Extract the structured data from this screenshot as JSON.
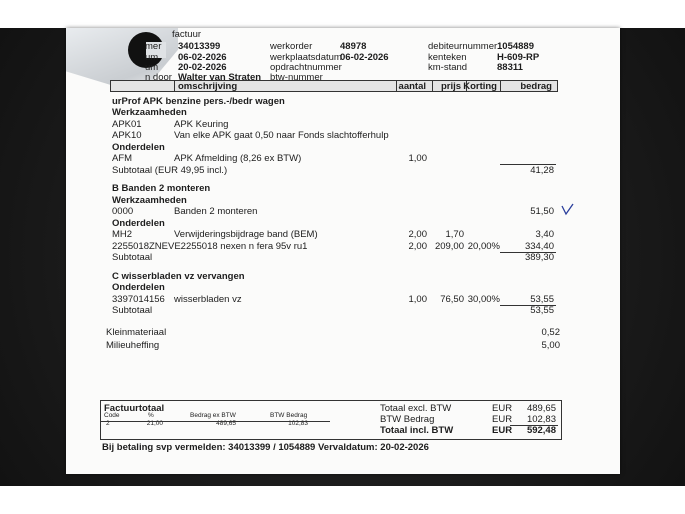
{
  "header": {
    "title": "factuur",
    "left": [
      {
        "label": "mer",
        "value": "34013399"
      },
      {
        "label": "um",
        "value": "06-02-2026"
      },
      {
        "label": "um",
        "value": "20-02-2026"
      },
      {
        "label": "n door",
        "value": "Walter van Straten"
      }
    ],
    "middle": [
      {
        "label": "werkorder",
        "value": "48978"
      },
      {
        "label": "werkplaatsdatum",
        "value": "06-02-2026"
      },
      {
        "label": "opdrachtnummer"
      },
      {
        "label": "btw-nummer"
      }
    ],
    "right": [
      {
        "label": "debiteurnummer",
        "value": "1054889"
      },
      {
        "label": "kenteken",
        "value": "H-609-RP"
      },
      {
        "label": "km-stand",
        "value": "88311"
      }
    ]
  },
  "table_header": {
    "description": "omschrijving",
    "quantity": "aantal",
    "price": "prijs",
    "discount": "Korting",
    "amount": "bedrag"
  },
  "sections": [
    {
      "title": "urProf APK benzine pers.-/bedr wagen",
      "groups": [
        {
          "label": "Werkzaamheden",
          "items": [
            {
              "code": "APK01",
              "description": "APK Keuring"
            },
            {
              "code": "APK10",
              "description": "Van elke APK gaat 0,50 naar Fonds slachtofferhulp"
            }
          ]
        },
        {
          "label": "Onderdelen",
          "items": [
            {
              "code": "AFM",
              "description": "APK Afmelding (8,26 ex BTW)",
              "quantity": "1,00"
            }
          ]
        }
      ],
      "subtotal": {
        "label": "Subtotaal (EUR 49,95 incl.)",
        "amount": "41,28"
      }
    },
    {
      "title": "B Banden 2 monteren",
      "groups": [
        {
          "label": "Werkzaamheden",
          "items": [
            {
              "code": "0000",
              "description": "Banden 2 monteren",
              "amount": "51,50"
            }
          ]
        },
        {
          "label": "Onderdelen",
          "items": [
            {
              "code": "MH2",
              "description": "Verwijderingsbijdrage band (BEM)",
              "quantity": "2,00",
              "price": "1,70",
              "amount": "3,40"
            },
            {
              "code": "2255018ZNEVE2255018 nexen n fera 95v ru1",
              "quantity": "2,00",
              "price": "209,00",
              "discount": "20,00%",
              "amount": "334,40"
            }
          ]
        }
      ],
      "subtotal": {
        "label": "Subtotaal",
        "amount": "389,30"
      }
    },
    {
      "title": "C wisserbladen vz vervangen",
      "groups": [
        {
          "label": "Onderdelen",
          "items": [
            {
              "code": "3397014156",
              "description": "wisserbladen vz",
              "quantity": "1,00",
              "price": "76,50",
              "discount": "30,00%",
              "amount": "53,55"
            }
          ]
        }
      ],
      "subtotal": {
        "label": "Subtotaal",
        "amount": "53,55"
      }
    }
  ],
  "extra_charges": [
    {
      "label": "Kleinmateriaal",
      "amount": "0,52"
    },
    {
      "label": "Milieuheffing",
      "amount": "5,00"
    }
  ],
  "totals": {
    "title": "Factuurtotaal",
    "vat_table": {
      "columns": [
        "Code",
        "%",
        "Bedrag ex BTW",
        "BTW Bedrag"
      ],
      "row": [
        "2",
        "21,00",
        "489,65",
        "102,83"
      ]
    },
    "lines": [
      {
        "label": "Totaal excl. BTW",
        "currency": "EUR",
        "amount": "489,65"
      },
      {
        "label": "BTW Bedrag",
        "currency": "EUR",
        "amount": "102,83"
      },
      {
        "label": "Totaal incl. BTW",
        "currency": "EUR",
        "amount": "592,48"
      }
    ]
  },
  "payment_note": "Bij betaling svp vermelden: 34013399 / 1054889",
  "due_date": "Vervaldatum: 20-02-2026"
}
